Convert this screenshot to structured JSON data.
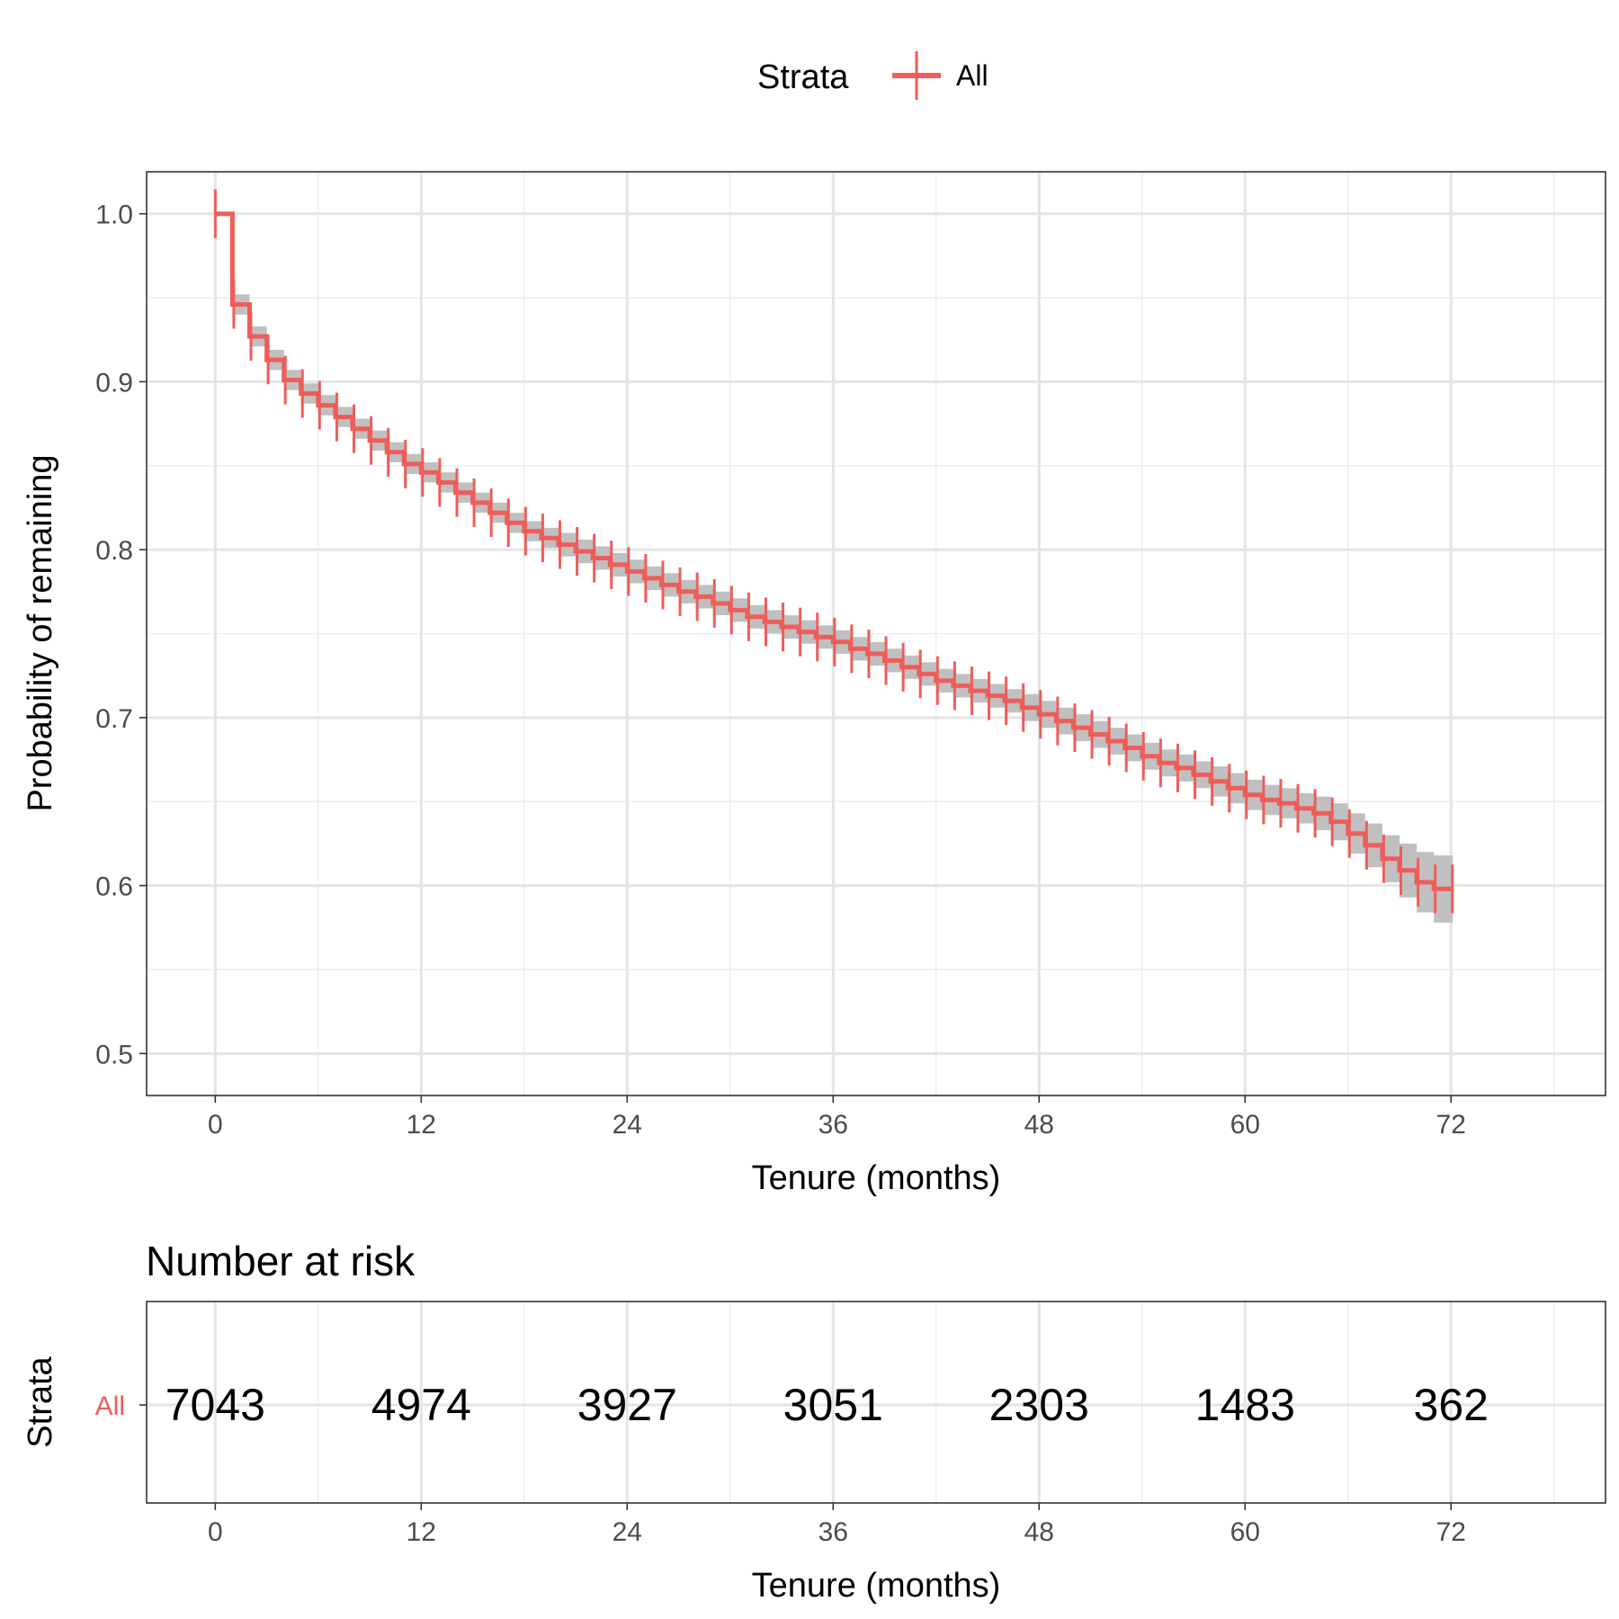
{
  "legend": {
    "title": "Strata",
    "entries": [
      "All"
    ]
  },
  "colors": {
    "curve": "#ee5d5a",
    "band": "#bdbdbd",
    "grid_major": "#e4e4e4",
    "grid_minor": "#efefef",
    "panel_border": "#333333",
    "axis_text": "#4d4d4d"
  },
  "chart_data": [
    {
      "type": "line",
      "subtype": "kaplan-meier step with confidence band and censor marks",
      "xlabel": "Tenure (months)",
      "ylabel": "Probability of remaining",
      "xlim": [
        -4,
        81
      ],
      "ylim": [
        0.475,
        1.025
      ],
      "xticks": [
        0,
        12,
        24,
        36,
        48,
        60,
        72
      ],
      "yticks": [
        0.5,
        0.6,
        0.7,
        0.8,
        0.9,
        1.0
      ],
      "ytick_labels": [
        "0.5",
        "0.6",
        "0.7",
        "0.8",
        "0.9",
        "1.0"
      ],
      "grid": true,
      "legend_position": "top",
      "series": [
        {
          "name": "All",
          "x": [
            0,
            1,
            2,
            3,
            4,
            5,
            6,
            7,
            8,
            9,
            10,
            11,
            12,
            13,
            14,
            15,
            16,
            17,
            18,
            19,
            20,
            21,
            22,
            23,
            24,
            25,
            26,
            27,
            28,
            29,
            30,
            31,
            32,
            33,
            34,
            35,
            36,
            37,
            38,
            39,
            40,
            41,
            42,
            43,
            44,
            45,
            46,
            47,
            48,
            49,
            50,
            51,
            52,
            53,
            54,
            55,
            56,
            57,
            58,
            59,
            60,
            61,
            62,
            63,
            64,
            65,
            66,
            67,
            68,
            69,
            70,
            71,
            72
          ],
          "survival": [
            1.0,
            0.946,
            0.927,
            0.913,
            0.901,
            0.893,
            0.886,
            0.879,
            0.872,
            0.865,
            0.858,
            0.851,
            0.846,
            0.84,
            0.834,
            0.828,
            0.822,
            0.816,
            0.811,
            0.807,
            0.803,
            0.799,
            0.795,
            0.791,
            0.787,
            0.783,
            0.779,
            0.775,
            0.772,
            0.768,
            0.764,
            0.76,
            0.757,
            0.754,
            0.751,
            0.748,
            0.745,
            0.741,
            0.738,
            0.734,
            0.73,
            0.726,
            0.722,
            0.719,
            0.716,
            0.713,
            0.71,
            0.706,
            0.702,
            0.698,
            0.694,
            0.69,
            0.686,
            0.682,
            0.677,
            0.673,
            0.67,
            0.666,
            0.662,
            0.658,
            0.654,
            0.651,
            0.649,
            0.646,
            0.643,
            0.638,
            0.631,
            0.624,
            0.616,
            0.609,
            0.602,
            0.598,
            0.598
          ],
          "band_halfwidth": [
            0,
            0.006,
            0.006,
            0.006,
            0.006,
            0.006,
            0.006,
            0.006,
            0.006,
            0.006,
            0.006,
            0.006,
            0.006,
            0.006,
            0.006,
            0.006,
            0.006,
            0.006,
            0.006,
            0.006,
            0.007,
            0.007,
            0.007,
            0.007,
            0.007,
            0.007,
            0.007,
            0.007,
            0.007,
            0.007,
            0.007,
            0.007,
            0.007,
            0.007,
            0.007,
            0.007,
            0.007,
            0.007,
            0.007,
            0.007,
            0.007,
            0.007,
            0.007,
            0.007,
            0.007,
            0.007,
            0.007,
            0.008,
            0.008,
            0.008,
            0.008,
            0.008,
            0.008,
            0.008,
            0.008,
            0.008,
            0.008,
            0.008,
            0.009,
            0.009,
            0.009,
            0.009,
            0.009,
            0.009,
            0.01,
            0.011,
            0.012,
            0.013,
            0.014,
            0.016,
            0.018,
            0.02,
            0.02
          ]
        }
      ]
    },
    {
      "type": "table",
      "title": "Number at risk",
      "xlabel": "Tenure (months)",
      "ylabel": "Strata",
      "xlim": [
        -4,
        81
      ],
      "xticks": [
        0,
        12,
        24,
        36,
        48,
        60,
        72
      ],
      "rows": [
        {
          "name": "All",
          "x": [
            0,
            12,
            24,
            36,
            48,
            60,
            72
          ],
          "values": [
            7043,
            4974,
            3927,
            3051,
            2303,
            1483,
            362
          ]
        }
      ]
    }
  ]
}
